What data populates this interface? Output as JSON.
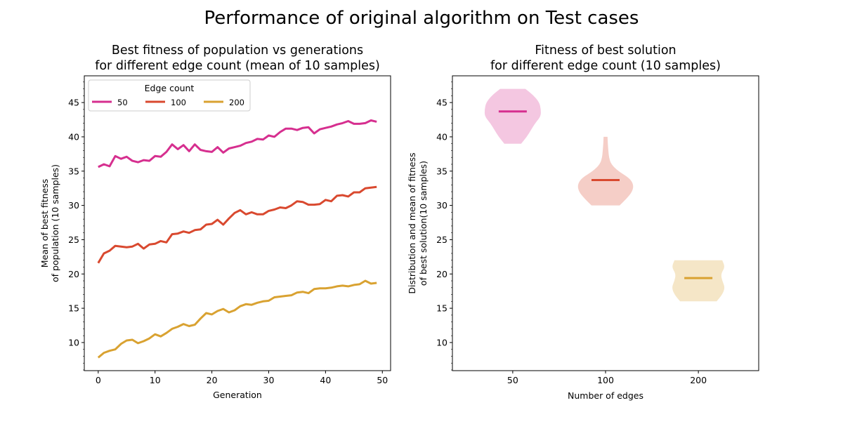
{
  "figure": {
    "title": "Performance of original algorithm on Test cases"
  },
  "colors": {
    "50": "#d62f8f",
    "100": "#d9492f",
    "200": "#d9a231"
  },
  "chart_data": [
    {
      "type": "line",
      "title_line1": "Best fitness of population vs generations",
      "title_line2": "for different edge count (mean of 10 samples)",
      "xlabel": "Generation",
      "ylabel_line1": "Mean of best fitness",
      "ylabel_line2": "of population (10 samples)",
      "xlim": [
        -2.45,
        51.45
      ],
      "ylim": [
        5.9,
        48.9
      ],
      "xticks": [
        0,
        10,
        20,
        30,
        40,
        50
      ],
      "yticks": [
        10,
        15,
        20,
        25,
        30,
        35,
        40,
        45
      ],
      "legend": {
        "title": "Edge count",
        "position": "top-left"
      },
      "x": [
        0,
        1,
        2,
        3,
        4,
        5,
        6,
        7,
        8,
        9,
        10,
        11,
        12,
        13,
        14,
        15,
        16,
        17,
        18,
        19,
        20,
        21,
        22,
        23,
        24,
        25,
        26,
        27,
        28,
        29,
        30,
        31,
        32,
        33,
        34,
        35,
        36,
        37,
        38,
        39,
        40,
        41,
        42,
        43,
        44,
        45,
        46,
        47,
        48,
        49
      ],
      "series": [
        {
          "name": "50",
          "color_key": "50",
          "values": [
            35.6,
            36.0,
            35.7,
            37.2,
            36.8,
            37.1,
            36.5,
            36.3,
            36.6,
            36.5,
            37.2,
            37.1,
            37.8,
            38.9,
            38.2,
            38.8,
            37.9,
            38.9,
            38.1,
            37.9,
            37.8,
            38.5,
            37.7,
            38.3,
            38.5,
            38.7,
            39.1,
            39.3,
            39.7,
            39.6,
            40.2,
            40.0,
            40.7,
            41.2,
            41.2,
            41.0,
            41.3,
            41.4,
            40.5,
            41.1,
            41.3,
            41.5,
            41.8,
            42.0,
            42.3,
            41.9,
            41.9,
            42.0,
            42.4,
            42.2
          ]
        },
        {
          "name": "100",
          "color_key": "100",
          "values": [
            21.6,
            23.0,
            23.4,
            24.1,
            24.0,
            23.9,
            24.0,
            24.4,
            23.7,
            24.3,
            24.4,
            24.8,
            24.6,
            25.8,
            25.9,
            26.2,
            26.0,
            26.4,
            26.5,
            27.2,
            27.3,
            27.9,
            27.2,
            28.1,
            28.9,
            29.3,
            28.7,
            29.0,
            28.7,
            28.7,
            29.2,
            29.4,
            29.7,
            29.6,
            30.0,
            30.6,
            30.5,
            30.1,
            30.1,
            30.2,
            30.8,
            30.6,
            31.4,
            31.5,
            31.3,
            31.9,
            31.9,
            32.5,
            32.6,
            32.7
          ]
        },
        {
          "name": "200",
          "color_key": "200",
          "values": [
            7.8,
            8.5,
            8.8,
            9.0,
            9.8,
            10.3,
            10.4,
            9.9,
            10.2,
            10.6,
            11.2,
            10.9,
            11.4,
            12.0,
            12.3,
            12.7,
            12.4,
            12.6,
            13.5,
            14.3,
            14.1,
            14.6,
            14.9,
            14.4,
            14.7,
            15.3,
            15.6,
            15.5,
            15.8,
            16.0,
            16.1,
            16.6,
            16.7,
            16.8,
            16.9,
            17.3,
            17.4,
            17.2,
            17.8,
            17.9,
            17.9,
            18.0,
            18.2,
            18.3,
            18.2,
            18.4,
            18.5,
            19.0,
            18.6,
            18.7
          ]
        }
      ]
    },
    {
      "type": "violin",
      "title_line1": "Fitness of best solution",
      "title_line2": "for different edge count (10 samples)",
      "xlabel": "Number of edges",
      "ylabel_line1": "Distribution and mean of fitness",
      "ylabel_line2": "of best solution(10 samples)",
      "ylim": [
        5.9,
        48.9
      ],
      "yticks": [
        10,
        15,
        20,
        25,
        30,
        35,
        40,
        45
      ],
      "categories": [
        "50",
        "100",
        "200"
      ],
      "violins": [
        {
          "category": "50",
          "color_key": "50",
          "min": 39,
          "max": 47,
          "mean": 43.7,
          "profile": [
            [
              39,
              0.3
            ],
            [
              40,
              0.5
            ],
            [
              41,
              0.65
            ],
            [
              42,
              0.8
            ],
            [
              43,
              1.0
            ],
            [
              44,
              1.0
            ],
            [
              45,
              0.95
            ],
            [
              46,
              0.75
            ],
            [
              47,
              0.45
            ]
          ]
        },
        {
          "category": "100",
          "color_key": "100",
          "min": 30,
          "max": 40,
          "mean": 33.7,
          "profile": [
            [
              30,
              0.5
            ],
            [
              31,
              0.75
            ],
            [
              32,
              0.95
            ],
            [
              33,
              1.0
            ],
            [
              34,
              0.85
            ],
            [
              35,
              0.45
            ],
            [
              36,
              0.2
            ],
            [
              37,
              0.12
            ],
            [
              38,
              0.1
            ],
            [
              39,
              0.08
            ],
            [
              40,
              0.07
            ]
          ]
        },
        {
          "category": "200",
          "color_key": "200",
          "min": 16,
          "max": 22,
          "mean": 19.4,
          "profile": [
            [
              16,
              0.65
            ],
            [
              17,
              0.85
            ],
            [
              18,
              0.95
            ],
            [
              19,
              0.85
            ],
            [
              20,
              0.8
            ],
            [
              21,
              0.95
            ],
            [
              22,
              0.85
            ]
          ]
        }
      ]
    }
  ]
}
